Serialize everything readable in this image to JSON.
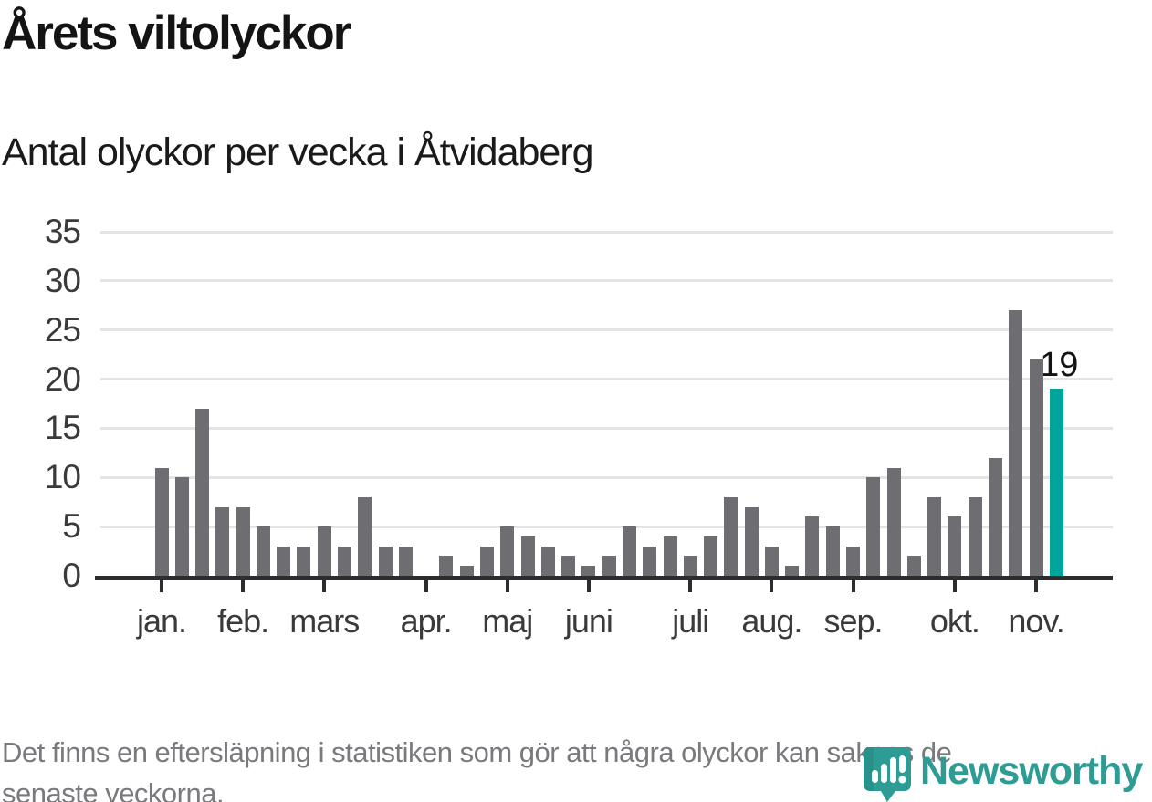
{
  "title": "Årets viltolyckor",
  "subtitle": "Antal olyckor per vecka i Åtvidaberg",
  "footnote_lines": [
    "Det finns en eftersläpning i statistiken som gör att några olyckor kan saknas de",
    "senaste veckorna."
  ],
  "logo": {
    "name": "Newsworthy",
    "icon": "newsworthy-bubble-barchart-icon"
  },
  "colors": {
    "bar": "#6d6d72",
    "highlight": "#00a49a",
    "grid": "#e4e4e4",
    "axis": "#2d2d2f",
    "title_text": "#141414",
    "label_text": "#3a3a3a",
    "footnote_text": "#7a7a7e",
    "logo_teal": "#2d9c94",
    "logo_teal_dark": "#28918a"
  },
  "chart_data": {
    "type": "bar",
    "title": "Årets viltolyckor",
    "subtitle": "Antal olyckor per vecka i Åtvidaberg",
    "x_unit": "week",
    "first_week": 1,
    "values": [
      11,
      10,
      17,
      7,
      7,
      5,
      3,
      3,
      5,
      3,
      8,
      3,
      3,
      0,
      2,
      1,
      3,
      5,
      4,
      3,
      2,
      1,
      2,
      5,
      3,
      4,
      2,
      4,
      8,
      7,
      3,
      1,
      6,
      5,
      3,
      10,
      11,
      2,
      8,
      6,
      8,
      12,
      27,
      22,
      19
    ],
    "highlight_last": true,
    "annotation": {
      "label": "19",
      "week": 45,
      "value": 19
    },
    "ylim": [
      0,
      35
    ],
    "yticks": [
      0,
      5,
      10,
      15,
      20,
      25,
      30,
      35
    ],
    "month_ticks": [
      {
        "label": "jan.",
        "week": 1
      },
      {
        "label": "feb.",
        "week": 5
      },
      {
        "label": "mars",
        "week": 9
      },
      {
        "label": "apr.",
        "week": 14
      },
      {
        "label": "maj",
        "week": 18
      },
      {
        "label": "juni",
        "week": 22
      },
      {
        "label": "juli",
        "week": 27
      },
      {
        "label": "aug.",
        "week": 31
      },
      {
        "label": "sep.",
        "week": 35
      },
      {
        "label": "okt.",
        "week": 40
      },
      {
        "label": "nov.",
        "week": 44
      }
    ],
    "grid": true,
    "legend": false
  }
}
